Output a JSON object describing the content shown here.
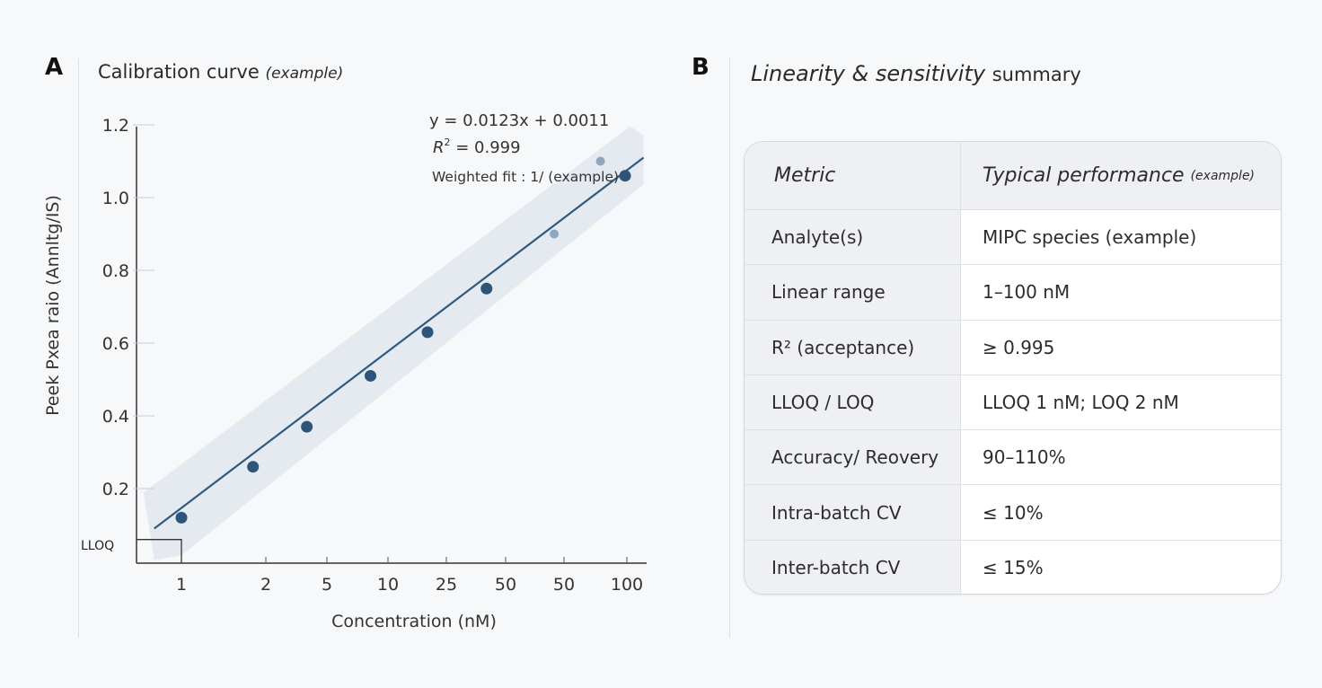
{
  "panel_a": {
    "letter": "A",
    "title": "Calibration curve",
    "title_note": "(example)"
  },
  "panel_b": {
    "letter": "B",
    "title_em": "Linearity & sensitivity",
    "title_rest": "summary"
  },
  "chart_data": {
    "type": "scatter",
    "title": "Calibration curve (example)",
    "xlabel": "Concentration (nM)",
    "ylabel": "Peek Pxea raio (Annltg/IS)",
    "x_tick_labels": [
      "1",
      "2",
      "5",
      "10",
      "25",
      "50",
      "50",
      "100"
    ],
    "y_tick_labels": [
      "0.2",
      "0.4",
      "0.6",
      "0.8",
      "1.0",
      "1.2"
    ],
    "y_ticks": [
      0.2,
      0.4,
      0.6,
      0.8,
      1.0,
      1.2
    ],
    "ylim": [
      0.0,
      1.2
    ],
    "x_scale": "log",
    "xlim": [
      0.75,
      110
    ],
    "grid": false,
    "points": [
      {
        "x": 1,
        "y": 0.12
      },
      {
        "x": 1.8,
        "y": 0.26
      },
      {
        "x": 3.7,
        "y": 0.37
      },
      {
        "x": 8.2,
        "y": 0.51
      },
      {
        "x": 18.6,
        "y": 0.63
      },
      {
        "x": 40,
        "y": 0.75
      },
      {
        "x": 66,
        "y": 0.9,
        "faded": true
      },
      {
        "x": 86,
        "y": 1.1,
        "faded": true
      },
      {
        "x": 99,
        "y": 1.06
      }
    ],
    "fit_line": {
      "x": [
        0.8,
        110
      ],
      "y": [
        0.09,
        1.11
      ]
    },
    "lloq": {
      "label": "LLOQ",
      "x": 1,
      "y": 0.06
    },
    "annotations": {
      "equation": "y = 0.0123x + 0.0011",
      "r2_label": "R",
      "r2_sup": "2",
      "r2_value": " = 0.999",
      "weighting": "Weighted fit : 1/ (example)"
    },
    "colors": {
      "line": "#2f5a80",
      "point": "#2e5479",
      "faded_point": "#7e9cb5",
      "band": "#dfe5ec",
      "axis": "#333333"
    }
  },
  "table": {
    "headers": {
      "metric": "Metric",
      "performance": "Typical performance",
      "performance_note": "(example)"
    },
    "rows": [
      {
        "metric": "Analyte(s)",
        "value": "MIPC species (example)"
      },
      {
        "metric": "Linear range",
        "value": "1–100 nM"
      },
      {
        "metric": "R² (acceptance)",
        "value": "≥ 0.995"
      },
      {
        "metric": "LLOQ / LOQ",
        "value": "LLOQ 1 nM; LOQ 2 nM"
      },
      {
        "metric": "Accuracy/ Reovery",
        "value": "90–110%"
      },
      {
        "metric": "Intra-batch CV",
        "value": "≤ 10%"
      },
      {
        "metric": "Inter-batch CV",
        "value": "≤ 15%"
      }
    ]
  }
}
